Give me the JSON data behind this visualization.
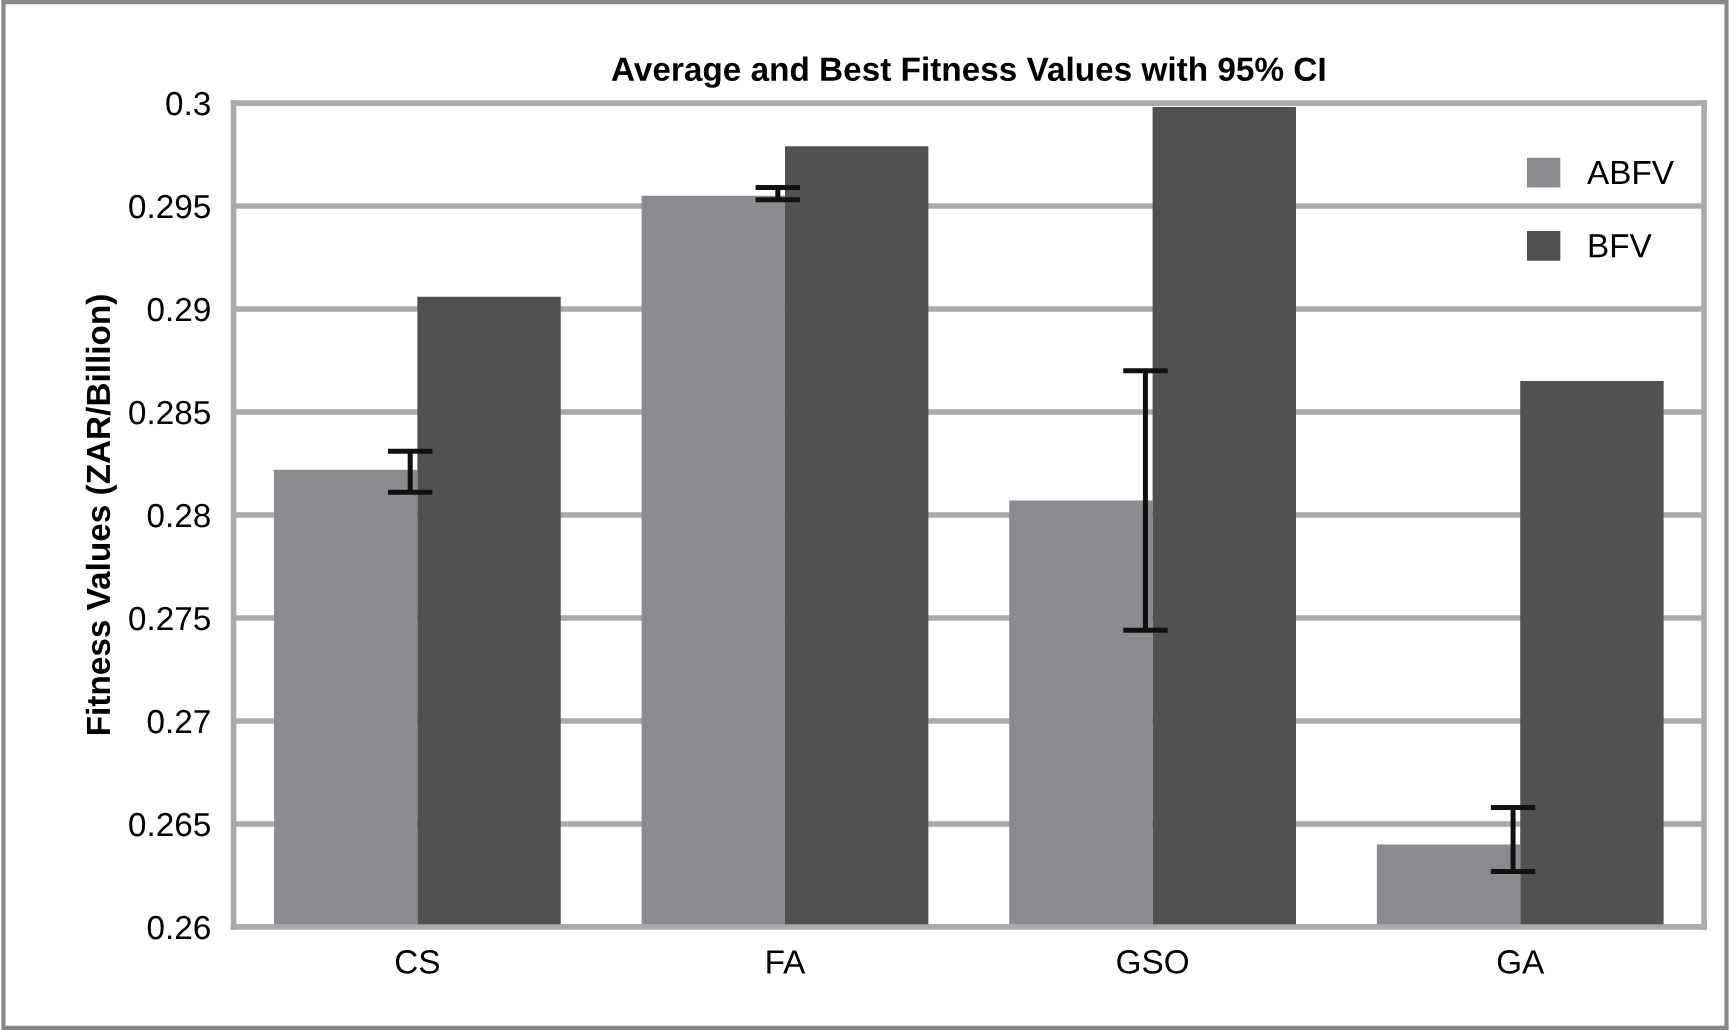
{
  "chart_data": {
    "type": "bar",
    "title": "Average and Best Fitness Values with 95% CI",
    "ylabel": "Fitness Values (ZAR/Billion)",
    "categories": [
      "CS",
      "FA",
      "GSO",
      "GA"
    ],
    "series": [
      {
        "name": "ABFV",
        "color": "#8a8b8e",
        "values": [
          0.2822,
          0.2955,
          0.2807,
          0.264
        ],
        "errors": [
          [
            0.2811,
            0.2831
          ],
          [
            0.2953,
            0.2959
          ],
          [
            0.2744,
            0.287
          ],
          [
            0.2627,
            0.2658
          ]
        ]
      },
      {
        "name": "BFV",
        "color": "#505153",
        "values": [
          0.2906,
          0.2979,
          0.2998,
          0.2865
        ]
      }
    ],
    "ylim": [
      0.26,
      0.3
    ],
    "yticks": [
      0.26,
      0.265,
      0.27,
      0.275,
      0.28,
      0.285,
      0.29,
      0.295,
      0.3
    ],
    "grid": "y",
    "legend": "top right"
  }
}
